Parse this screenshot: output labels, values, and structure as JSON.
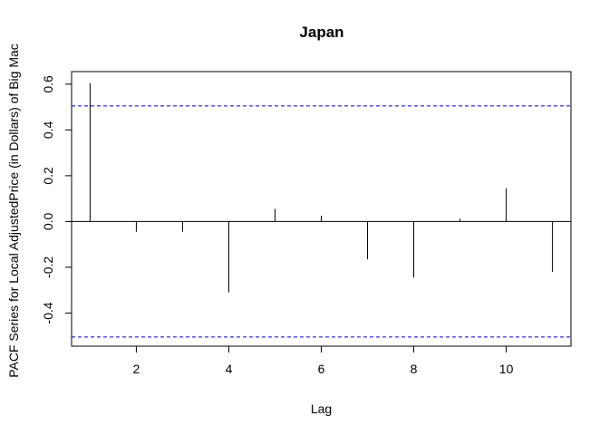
{
  "chart_data": {
    "type": "bar",
    "title": "Japan",
    "xlabel": "Lag",
    "ylabel": "PACF Series for Local  AdjustedPrice (in Dollars) of Big Mac",
    "lags": [
      1,
      2,
      3,
      4,
      5,
      6,
      7,
      8,
      9,
      10,
      11
    ],
    "values": [
      0.605,
      -0.045,
      -0.045,
      -0.31,
      0.055,
      0.025,
      -0.165,
      -0.245,
      0.012,
      0.145,
      -0.22
    ],
    "confidence_bound": 0.505,
    "xlim": [
      0.6,
      11.4
    ],
    "ylim": [
      -0.545,
      0.655
    ],
    "x_ticks": [
      2,
      4,
      6,
      8,
      10
    ],
    "y_ticks": [
      -0.4,
      -0.2,
      0.0,
      0.2,
      0.4,
      0.6
    ],
    "y_tick_labels": [
      "-0.4",
      "-0.2",
      "0.0",
      "0.2",
      "0.4",
      "0.6"
    ],
    "colors": {
      "bars": "#000000",
      "confidence_lines": "#0000cc",
      "axes": "#000000"
    }
  }
}
